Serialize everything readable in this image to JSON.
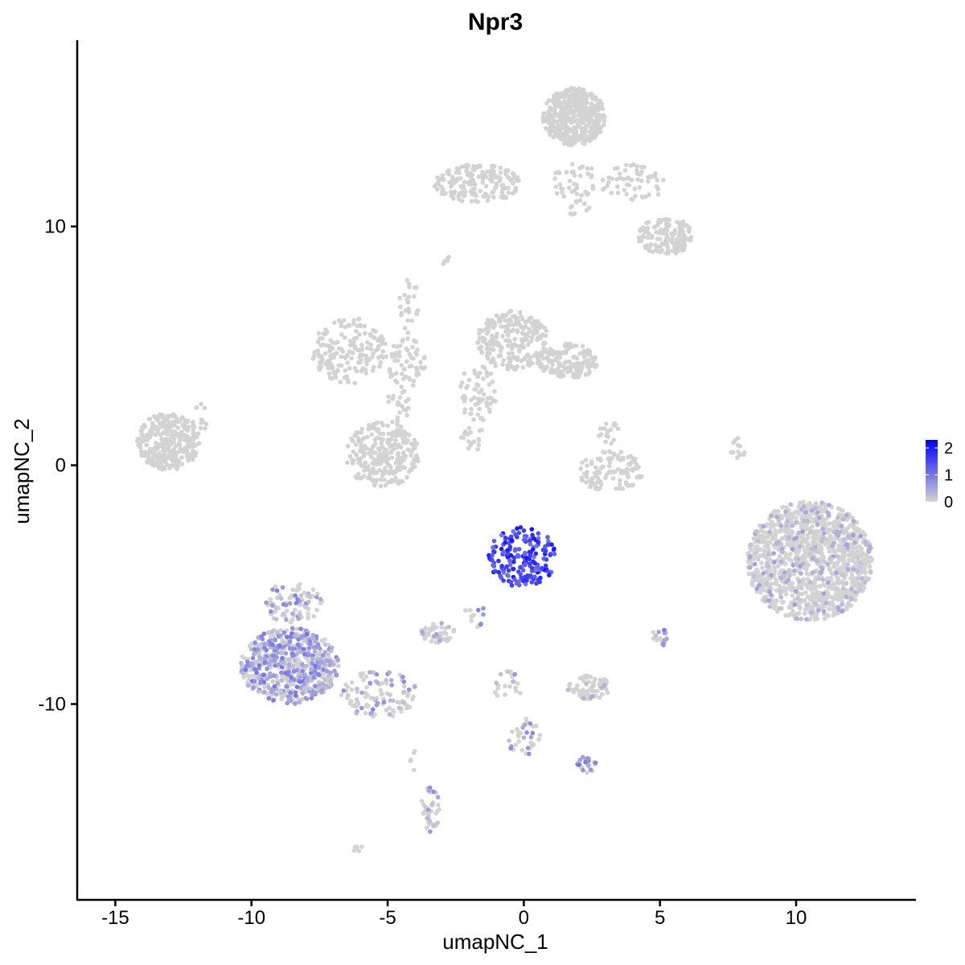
{
  "chart_data": {
    "type": "scatter",
    "title": "Npr3",
    "xlabel": "umapNC_1",
    "ylabel": "umapNC_2",
    "xlim": [
      -16.4,
      14.4
    ],
    "ylim": [
      -18.2,
      17.8
    ],
    "x_ticks": [
      -15,
      -10,
      -5,
      0,
      5,
      10
    ],
    "y_ticks": [
      -10,
      0,
      10
    ],
    "grid": false,
    "color_scale": {
      "low": "#d3d3d3",
      "high": "#0000ff",
      "min": 0,
      "max": 2.3
    },
    "legend": {
      "placement": "right",
      "ticks": [
        0,
        1,
        2
      ]
    },
    "background_point_color": "#d3d3d3",
    "clusters": [
      {
        "name": "c1",
        "x": [
          -14.2,
          -11.9
        ],
        "y": [
          -0.2,
          2.2
        ],
        "n": 320,
        "expr": 0
      },
      {
        "name": "c2",
        "x": [
          -12.2,
          -11.6
        ],
        "y": [
          1.2,
          2.8
        ],
        "n": 12,
        "expr": 0
      },
      {
        "name": "c3",
        "x": [
          -7.8,
          -5.0
        ],
        "y": [
          3.4,
          6.2
        ],
        "n": 170,
        "expr": 0
      },
      {
        "name": "c4",
        "x": [
          -5.0,
          -3.6
        ],
        "y": [
          3.2,
          5.4
        ],
        "n": 60,
        "expr": 0
      },
      {
        "name": "c5",
        "x": [
          -6.6,
          -3.8
        ],
        "y": [
          -0.9,
          1.8
        ],
        "n": 260,
        "expr": 0
      },
      {
        "name": "c6",
        "x": [
          -5.0,
          -4.2
        ],
        "y": [
          1.6,
          3.5
        ],
        "n": 25,
        "expr": 0
      },
      {
        "name": "c7",
        "x": [
          -4.6,
          -3.8
        ],
        "y": [
          5.5,
          7.8
        ],
        "n": 25,
        "expr": 0
      },
      {
        "name": "c8",
        "x": [
          -1.7,
          0.9
        ],
        "y": [
          4.0,
          6.5
        ],
        "n": 230,
        "expr": 0
      },
      {
        "name": "c9",
        "x": [
          -2.4,
          -1.0
        ],
        "y": [
          1.8,
          4.2
        ],
        "n": 60,
        "expr": 0
      },
      {
        "name": "c10",
        "x": [
          0.5,
          2.7
        ],
        "y": [
          3.6,
          5.1
        ],
        "n": 160,
        "expr": 0
      },
      {
        "name": "c11",
        "x": [
          -2.4,
          -1.2
        ],
        "y": [
          0.6,
          1.6
        ],
        "n": 18,
        "expr": 0
      },
      {
        "name": "c12",
        "x": [
          2.0,
          4.4
        ],
        "y": [
          -1.1,
          0.6
        ],
        "n": 110,
        "expr": 0
      },
      {
        "name": "c13",
        "x": [
          2.7,
          3.6
        ],
        "y": [
          0.8,
          1.8
        ],
        "n": 20,
        "expr": 0
      },
      {
        "name": "c14",
        "x": [
          7.6,
          8.2
        ],
        "y": [
          0.0,
          1.2
        ],
        "n": 12,
        "expr": 0
      },
      {
        "name": "c15",
        "x": [
          -3.3,
          -0.1
        ],
        "y": [
          11.0,
          12.6
        ],
        "n": 170,
        "expr": 0
      },
      {
        "name": "c16",
        "x": [
          0.7,
          3.0
        ],
        "y": [
          13.4,
          15.8
        ],
        "n": 480,
        "expr": 0
      },
      {
        "name": "c17",
        "x": [
          1.0,
          2.8
        ],
        "y": [
          10.4,
          12.8
        ],
        "n": 50,
        "expr": 0
      },
      {
        "name": "c18",
        "x": [
          2.8,
          5.2
        ],
        "y": [
          11.0,
          12.6
        ],
        "n": 60,
        "expr": 0
      },
      {
        "name": "c19",
        "x": [
          4.2,
          6.2
        ],
        "y": [
          8.8,
          10.4
        ],
        "n": 150,
        "expr": 0
      },
      {
        "name": "c20",
        "x": [
          -3.0,
          -2.6
        ],
        "y": [
          8.3,
          8.8
        ],
        "n": 5,
        "expr": 0
      },
      {
        "name": "c21",
        "x": [
          8.2,
          12.8
        ],
        "y": [
          -6.5,
          -1.5
        ],
        "n": 1250,
        "expr": 0.02
      },
      {
        "name": "c22",
        "x": [
          -1.3,
          1.2
        ],
        "y": [
          -5.1,
          -2.6
        ],
        "n": 190,
        "expr": 1.55
      },
      {
        "name": "c23",
        "x": [
          -10.4,
          -6.8
        ],
        "y": [
          -10.0,
          -6.8
        ],
        "n": 650,
        "expr": 0.5
      },
      {
        "name": "c24",
        "x": [
          -9.6,
          -7.4
        ],
        "y": [
          -6.6,
          -4.9
        ],
        "n": 90,
        "expr": 0.35
      },
      {
        "name": "c25",
        "x": [
          -6.7,
          -3.9
        ],
        "y": [
          -10.6,
          -8.6
        ],
        "n": 110,
        "expr": 0.3
      },
      {
        "name": "c26",
        "x": [
          -3.8,
          -2.5
        ],
        "y": [
          -7.5,
          -6.6
        ],
        "n": 50,
        "expr": 0.05
      },
      {
        "name": "c27",
        "x": [
          -2.2,
          -1.4
        ],
        "y": [
          -6.8,
          -5.7
        ],
        "n": 12,
        "expr": 0.35
      },
      {
        "name": "c28",
        "x": [
          -1.2,
          0.0
        ],
        "y": [
          -9.8,
          -8.6
        ],
        "n": 20,
        "expr": 0.35
      },
      {
        "name": "c29",
        "x": [
          -0.6,
          0.6
        ],
        "y": [
          -12.2,
          -10.6
        ],
        "n": 35,
        "expr": 0.3
      },
      {
        "name": "c30",
        "x": [
          1.9,
          2.7
        ],
        "y": [
          -12.9,
          -12.2
        ],
        "n": 25,
        "expr": 0.6
      },
      {
        "name": "c31",
        "x": [
          1.6,
          3.2
        ],
        "y": [
          -9.8,
          -8.8
        ],
        "n": 70,
        "expr": 0.02
      },
      {
        "name": "c32",
        "x": [
          4.7,
          5.3
        ],
        "y": [
          -7.6,
          -6.8
        ],
        "n": 18,
        "expr": 0.5
      },
      {
        "name": "c33",
        "x": [
          -3.8,
          -3.1
        ],
        "y": [
          -15.4,
          -13.4
        ],
        "n": 40,
        "expr": 0.3
      },
      {
        "name": "c34",
        "x": [
          -6.3,
          -5.9
        ],
        "y": [
          -16.2,
          -15.8
        ],
        "n": 6,
        "expr": 0
      },
      {
        "name": "c35",
        "x": [
          -4.2,
          -3.9
        ],
        "y": [
          -12.8,
          -11.6
        ],
        "n": 5,
        "expr": 0
      }
    ]
  }
}
